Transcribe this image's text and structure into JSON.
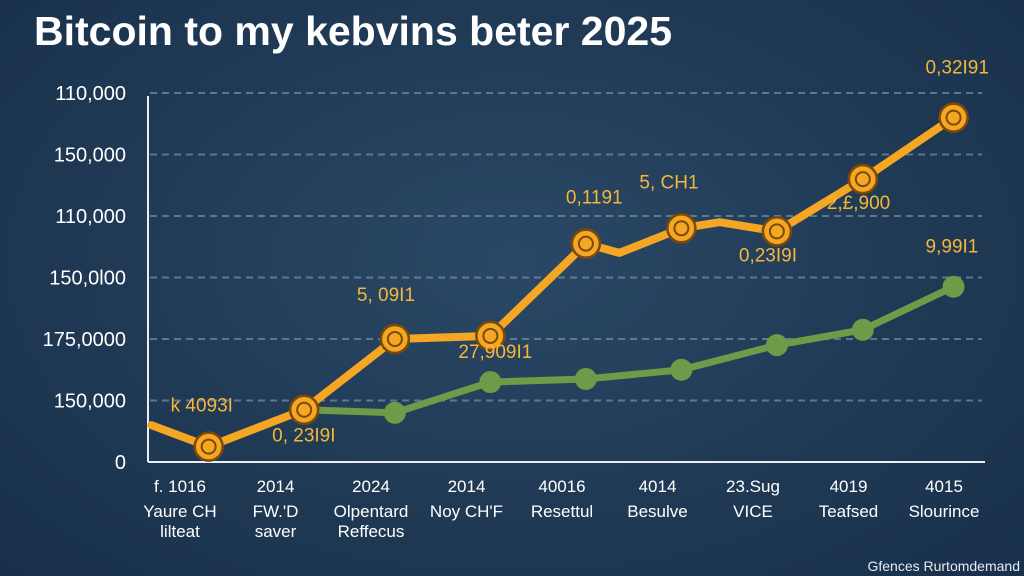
{
  "chart_data": {
    "type": "line",
    "title": "Bitcoin to my kebvins beter 2025",
    "xlabel": "",
    "ylabel": "",
    "y_ticks": [
      "110,000",
      "150,000",
      "110,000",
      "150,0l00",
      "175,0000",
      "150,000",
      "0"
    ],
    "categories": [
      {
        "year": "f. 1016",
        "sub": "Yaure CH lilteat"
      },
      {
        "year": "2014",
        "sub": "FW.'D saver"
      },
      {
        "year": "2024",
        "sub": "Olpentard Reffecus"
      },
      {
        "year": "2014",
        "sub": "Noy CH'F"
      },
      {
        "year": "40016",
        "sub": "Resettul"
      },
      {
        "year": "4014",
        "sub": "Besulve"
      },
      {
        "year": "23.Sug",
        "sub": "VICE"
      },
      {
        "year": "4019",
        "sub": "Teafsed"
      },
      {
        "year": "4015",
        "sub": "Slourince"
      }
    ],
    "grid": true,
    "series": [
      {
        "color": "#f5a623",
        "points": [
          [
            -0.3,
            0.6
          ],
          [
            0.3,
            0.25
          ],
          [
            1.3,
            0.85
          ],
          [
            2.25,
            2.0
          ],
          [
            3.25,
            2.05
          ],
          [
            4.25,
            3.55
          ],
          [
            4.6,
            3.4
          ],
          [
            5.25,
            3.8
          ],
          [
            5.65,
            3.9
          ],
          [
            6.25,
            3.75
          ],
          [
            7.15,
            4.6
          ],
          [
            8.1,
            5.6
          ]
        ],
        "markers": [
          0.3,
          1.3,
          2.25,
          3.25,
          4.25,
          5.25,
          6.25,
          7.15,
          8.1
        ]
      },
      {
        "color": "#6f9a48",
        "points": [
          [
            1.3,
            0.85
          ],
          [
            2.25,
            0.8
          ],
          [
            3.25,
            1.3
          ],
          [
            4.25,
            1.35
          ],
          [
            5.25,
            1.5
          ],
          [
            6.25,
            1.9
          ],
          [
            7.15,
            2.15
          ],
          [
            8.1,
            2.85
          ]
        ],
        "markers": [
          2.25,
          3.25,
          4.25,
          5.25,
          6.25,
          7.15,
          8.1
        ]
      }
    ],
    "annotations": [
      {
        "text": "k 4093I",
        "at": [
          0.3,
          0.25
        ],
        "dx": -38,
        "dy": -35
      },
      {
        "text": "0, 23I9I",
        "at": [
          1.3,
          0.85
        ],
        "dx": -32,
        "dy": 32
      },
      {
        "text": "5, 09I1",
        "at": [
          2.25,
          2.0
        ],
        "dx": -38,
        "dy": -38
      },
      {
        "text": "27,909I1",
        "at": [
          3.25,
          2.05
        ],
        "dx": -32,
        "dy": 22
      },
      {
        "text": "0,1191",
        "at": [
          4.25,
          3.55
        ],
        "dx": -20,
        "dy": -40
      },
      {
        "text": "5, CH1",
        "at": [
          5.25,
          3.8
        ],
        "dx": -42,
        "dy": -40
      },
      {
        "text": "0,23I9I",
        "at": [
          6.25,
          3.75
        ],
        "dx": -38,
        "dy": 30
      },
      {
        "text": "2,£,900",
        "at": [
          7.15,
          4.6
        ],
        "dx": -36,
        "dy": 30
      },
      {
        "text": "0,32I91",
        "at": [
          8.1,
          5.6
        ],
        "dx": -28,
        "dy": -44
      },
      {
        "text": "9,99I1",
        "at": [
          8.1,
          2.85
        ],
        "dx": -28,
        "dy": -34
      }
    ]
  },
  "footer_note": "Gfences Rurtomdemand"
}
